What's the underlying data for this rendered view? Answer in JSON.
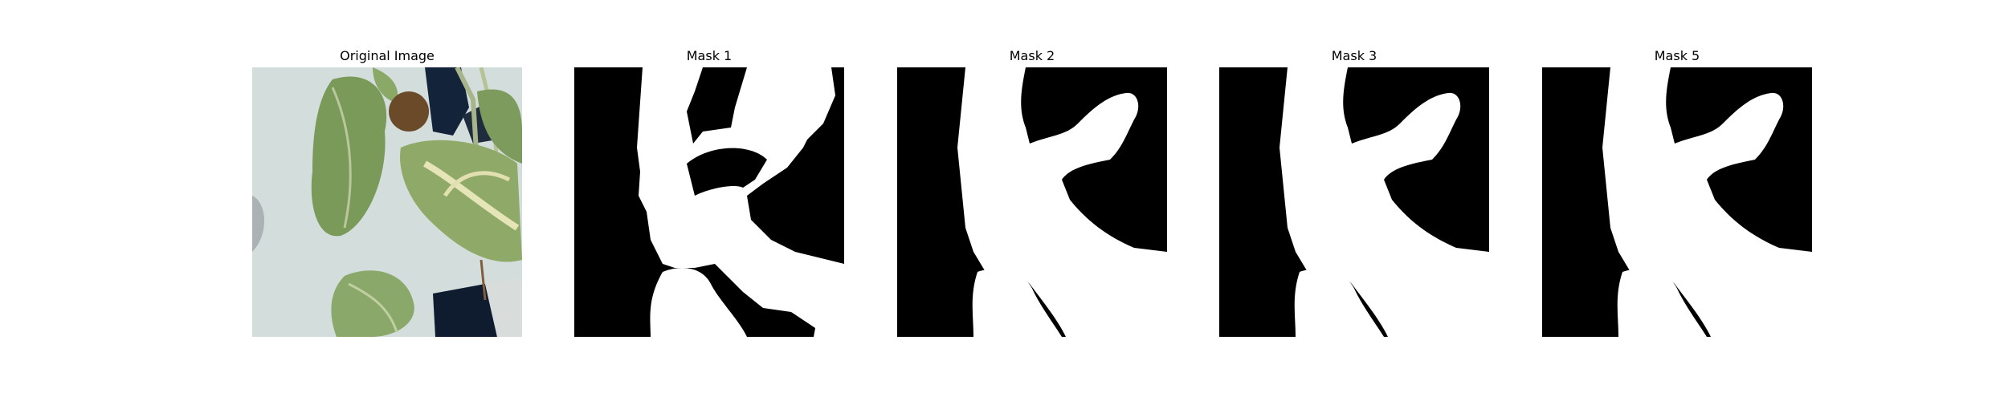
{
  "panels": [
    {
      "title": "Original Image"
    },
    {
      "title": "Mask 1"
    },
    {
      "title": "Mask 2"
    },
    {
      "title": "Mask 3"
    },
    {
      "title": "Mask 5"
    }
  ],
  "colors": {
    "background": "#ffffff",
    "mask_background": "#000000",
    "mask_foreground": "#ffffff",
    "leaf_green": "#6f8f4f",
    "leaf_light": "#c9d3a8",
    "wall": "#cfd9da",
    "dark_object": "#13233a"
  }
}
